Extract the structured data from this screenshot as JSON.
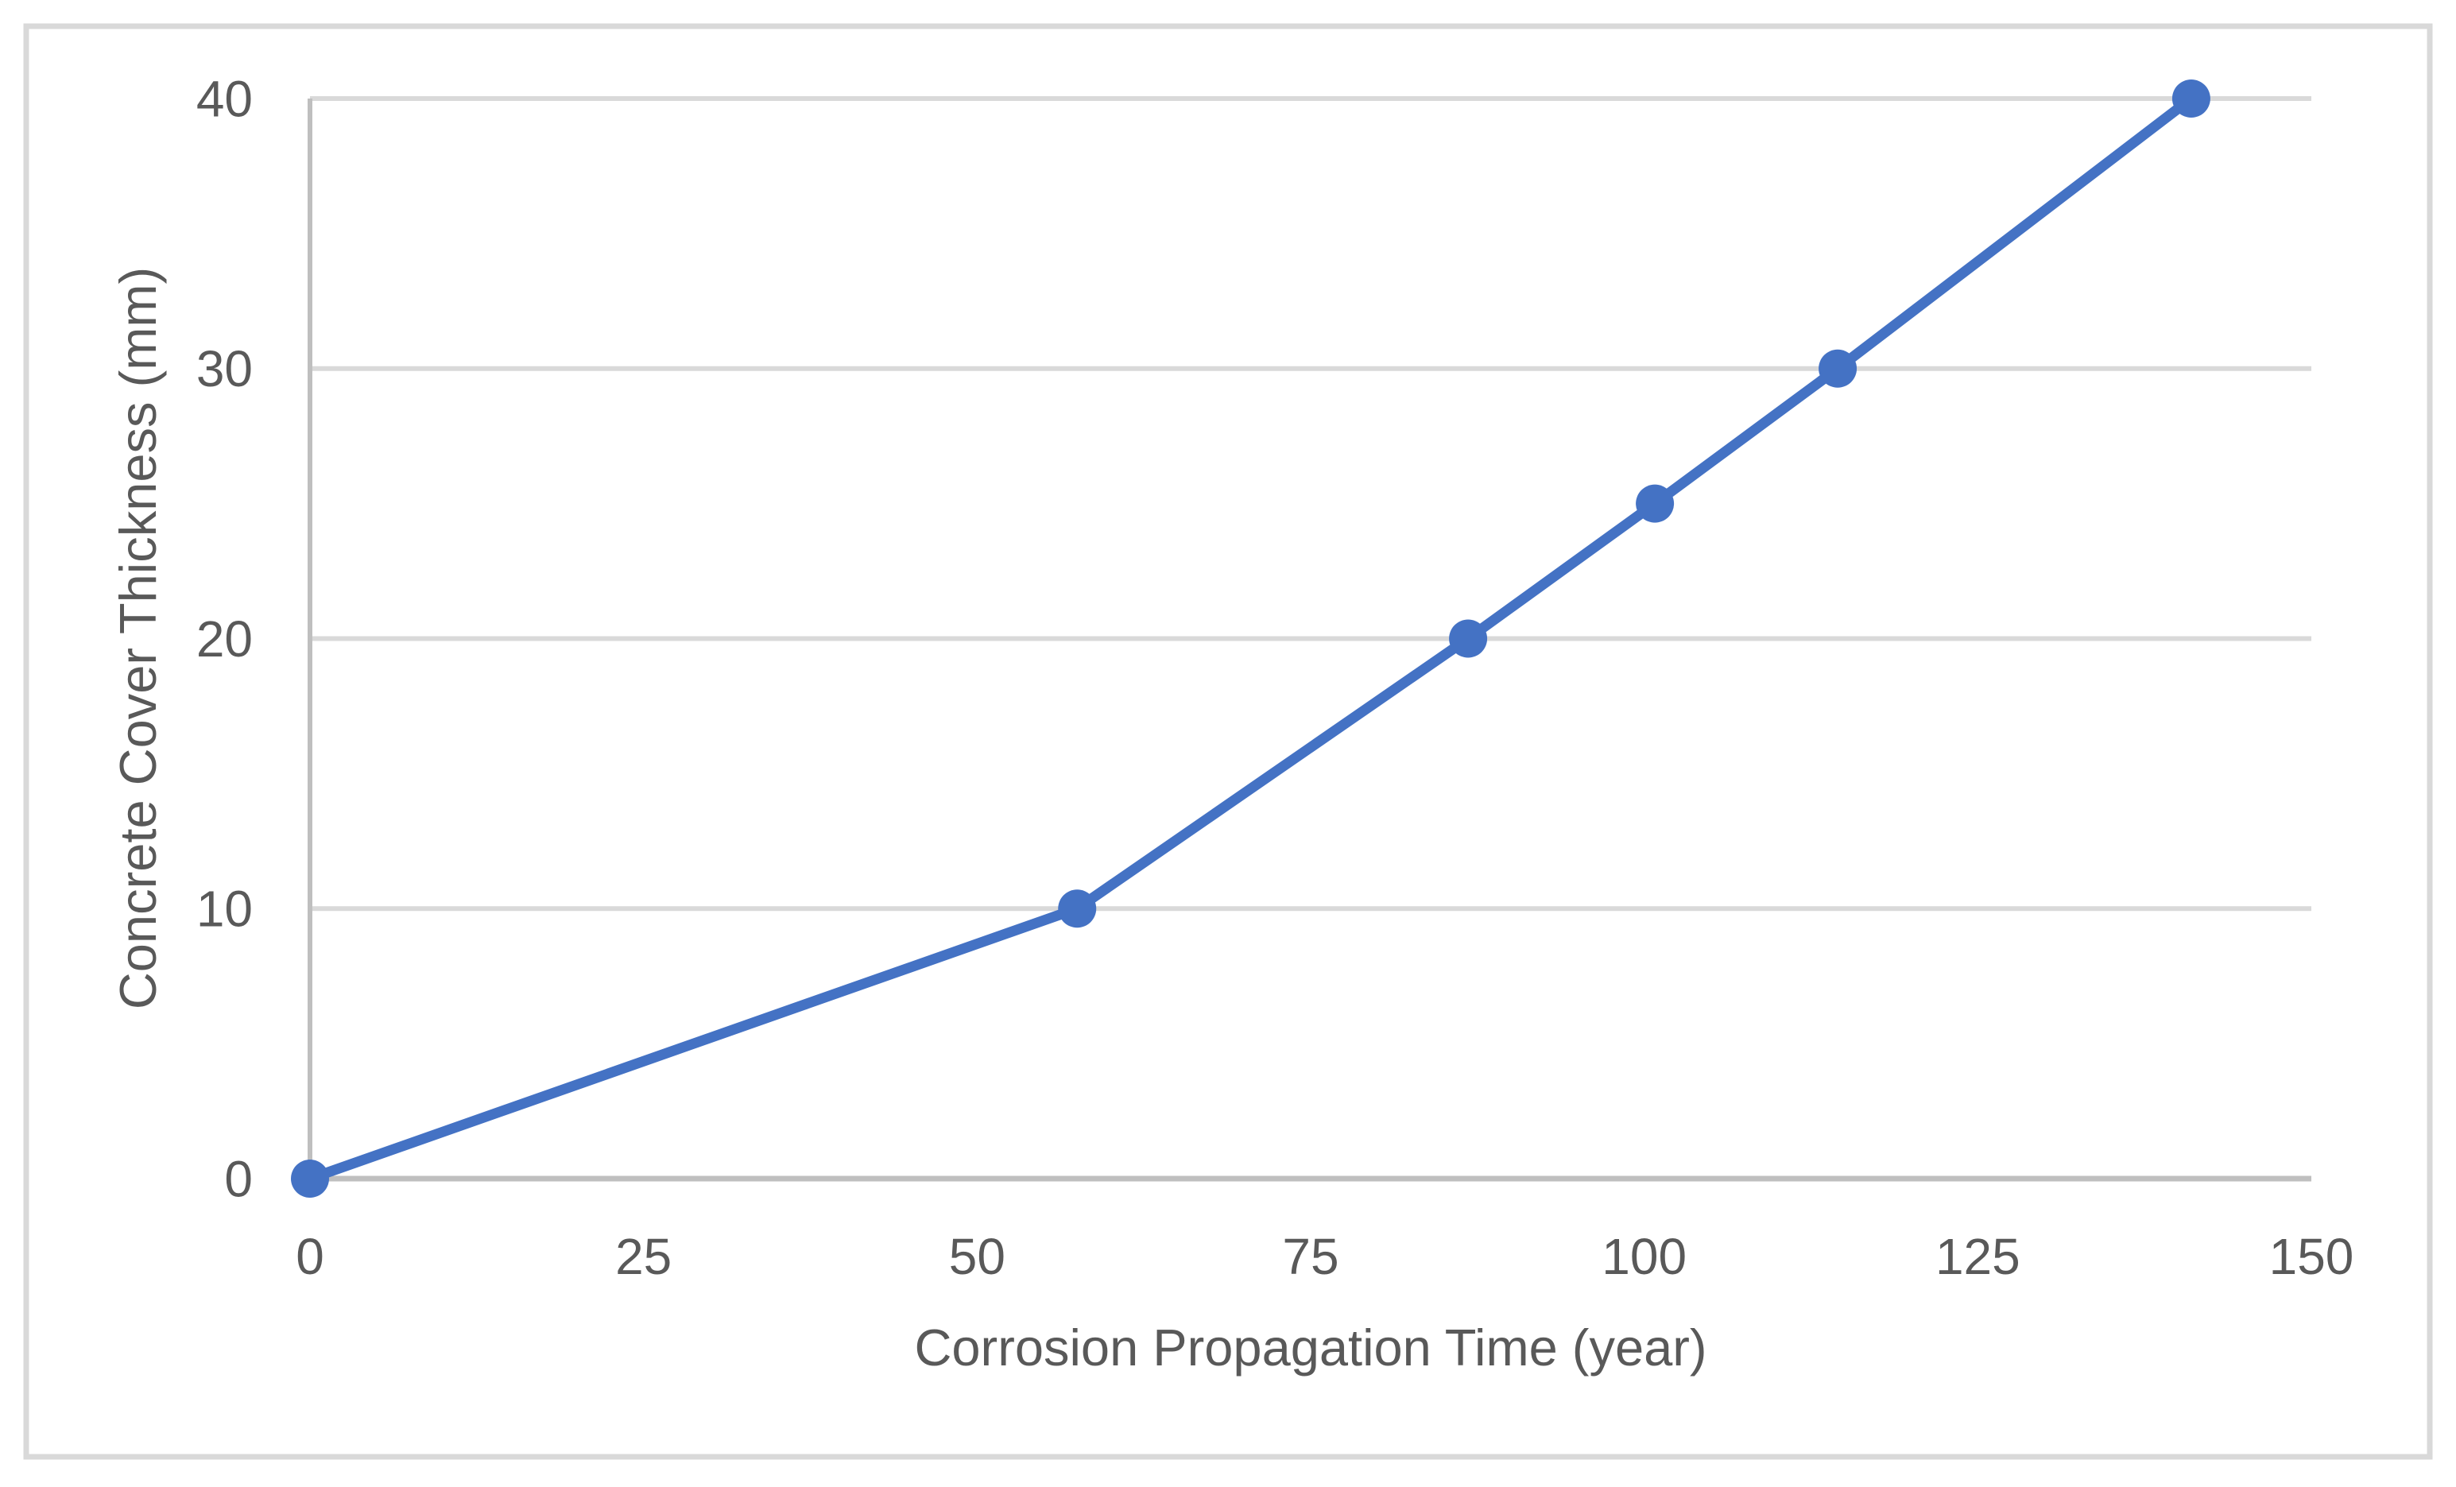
{
  "chart_data": {
    "type": "line",
    "title": "",
    "xlabel": "Corrosion Propagation Time (year)",
    "ylabel": "Concrete Cover Thickness (mm)",
    "x": [
      0,
      57.5,
      86.8,
      100.8,
      114.5,
      141
    ],
    "y": [
      0,
      10,
      20,
      25,
      30,
      40
    ],
    "points": [
      {
        "x": 0,
        "y": 0
      },
      {
        "x": 57.5,
        "y": 10
      },
      {
        "x": 86.8,
        "y": 20
      },
      {
        "x": 100.8,
        "y": 25
      },
      {
        "x": 114.5,
        "y": 30
      },
      {
        "x": 141,
        "y": 40
      }
    ],
    "xlim": [
      0,
      150
    ],
    "ylim": [
      0,
      40
    ],
    "x_ticks": [
      0,
      25,
      50,
      75,
      100,
      125,
      150
    ],
    "y_ticks": [
      0,
      10,
      20,
      30,
      40
    ],
    "grid": "horizontal-only",
    "legend": "none",
    "marker": "circle",
    "colors": {
      "series_line": "#4472C4",
      "marker_fill": "#4472C4",
      "gridline": "#D9D9D9",
      "axis_line": "#BFBFBF",
      "text": "#595959",
      "figure_border": "#D9D9D9",
      "background": "#FFFFFF"
    }
  }
}
